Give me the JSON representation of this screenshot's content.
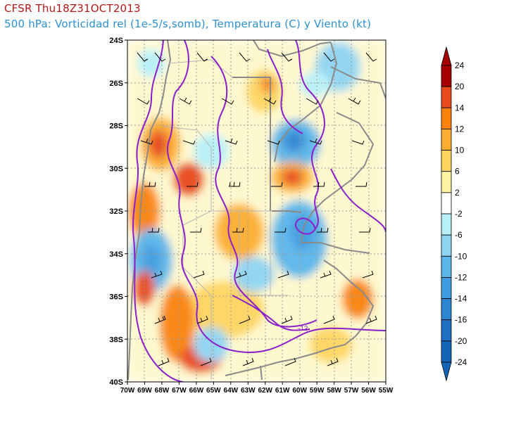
{
  "header": {
    "model_run": "CFSR Thu18Z31OCT2013",
    "description": "500 hPa: Vorticidad rel (1e-5/s,somb), Temperatura (C) y Viento (kt)"
  },
  "map": {
    "lat_labels": [
      "24S",
      "26S",
      "28S",
      "30S",
      "32S",
      "34S",
      "36S",
      "38S",
      "40S"
    ],
    "lon_labels": [
      "70W",
      "69W",
      "68W",
      "67W",
      "66W",
      "65W",
      "64W",
      "63W",
      "62W",
      "61W",
      "60W",
      "59W",
      "58W",
      "57W",
      "56W",
      "55W"
    ],
    "lat_range": [
      -40,
      -24
    ],
    "lon_range": [
      -70,
      -55
    ],
    "contour_label": "-12",
    "colors": {
      "isotherm": "#8b1fc9",
      "coastline": "#8a8a8a",
      "wind_barb": "#000000"
    }
  },
  "colorbar": {
    "labels": [
      "24",
      "20",
      "14",
      "12",
      "10",
      "6",
      "2",
      "-2",
      "-6",
      "-10",
      "-12",
      "-14",
      "-16",
      "-20",
      "-24"
    ],
    "colors": [
      "#a50000",
      "#e84a1d",
      "#f9820c",
      "#fcad32",
      "#fdd45e",
      "#fef3a2",
      "#ffffff",
      "#b7f0f7",
      "#8fd4f1",
      "#5ab6e9",
      "#3f9ce0",
      "#2e85d1",
      "#1f6fc4",
      "#1464b7"
    ]
  }
}
